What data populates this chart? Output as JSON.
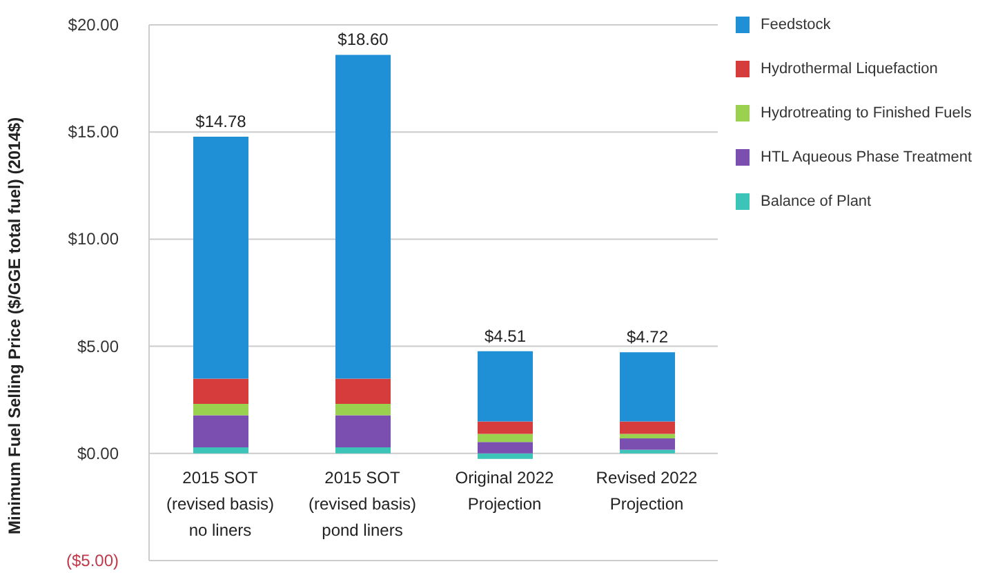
{
  "chart_data": {
    "type": "bar",
    "stacked": true,
    "ylabel": "Minimum Fuel Selling Price ($/GGE total fuel) (2014$)",
    "categories": [
      "2015 SOT (revised basis) no liners",
      "2015 SOT (revised basis) pond liners",
      "Original 2022 Projection",
      "Revised 2022 Projection"
    ],
    "series": [
      {
        "name": "Balance of Plant",
        "color": "#3cc4b8",
        "values": [
          0.28,
          0.28,
          -0.26,
          0.17
        ]
      },
      {
        "name": "HTL Aqueous Phase Treatment",
        "color": "#7b4fb0",
        "values": [
          1.5,
          1.5,
          0.53,
          0.53
        ]
      },
      {
        "name": "Hydrotreating to Finished Fuels",
        "color": "#9ad14f",
        "values": [
          0.53,
          0.53,
          0.38,
          0.21
        ]
      },
      {
        "name": "Hydrothermal Liquefaction",
        "color": "#d63c3c",
        "values": [
          1.18,
          1.18,
          0.58,
          0.58
        ]
      },
      {
        "name": "Feedstock",
        "color": "#1f8fd6",
        "values": [
          11.29,
          15.11,
          3.28,
          3.23
        ]
      }
    ],
    "totals": [
      "$14.78",
      "$18.60",
      "$4.51",
      "$4.72"
    ],
    "ylim": [
      -5,
      20
    ],
    "yticks": [
      {
        "value": -5,
        "label": "($5.00)"
      },
      {
        "value": 0,
        "label": "$0.00"
      },
      {
        "value": 5,
        "label": "$5.00"
      },
      {
        "value": 10,
        "label": "$10.00"
      },
      {
        "value": 15,
        "label": "$15.00"
      },
      {
        "value": 20,
        "label": "$20.00"
      }
    ],
    "grid": "y",
    "legend": "top right"
  }
}
